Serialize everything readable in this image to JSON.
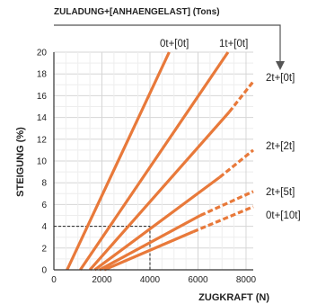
{
  "chart_data": {
    "type": "line",
    "header": "ZULADUNG+[ANHAENGELAST]  (Tons)",
    "xlabel": "ZUGKRAFT (N)",
    "ylabel": "STEIGUNG (%)",
    "xlim": [
      0,
      8300
    ],
    "ylim": [
      0,
      20
    ],
    "x_ticks": [
      0,
      2000,
      4000,
      6000,
      8000
    ],
    "y_ticks": [
      0,
      2,
      4,
      6,
      8,
      10,
      12,
      14,
      16,
      18,
      20
    ],
    "grid": true,
    "line_color": "#e8793a",
    "axis_color": "#333333",
    "guide_color": "#222222",
    "guide_point": {
      "x": 4000,
      "y": 4
    },
    "series": [
      {
        "name": "0t+[0t]",
        "x": [
          550,
          4800
        ],
        "y": [
          0,
          20
        ]
      },
      {
        "name": "1t+[0t]",
        "x": [
          1100,
          7250
        ],
        "y": [
          0,
          20
        ]
      },
      {
        "name": "2t+[0t]",
        "x": [
          1500,
          7300
        ],
        "y": [
          0,
          14.5
        ],
        "dashed_from_x": 7300,
        "dashed_to": {
          "x": 8300,
          "y": 17.3
        }
      },
      {
        "name": "2t+[2t]",
        "x": [
          1700,
          6900
        ],
        "y": [
          0,
          8.5
        ],
        "dashed_from_x": 6900,
        "dashed_to": {
          "x": 8300,
          "y": 11.0
        }
      },
      {
        "name": "2t+[5t]",
        "x": [
          1900,
          6100
        ],
        "y": [
          0,
          5.0
        ],
        "dashed_from_x": 6100,
        "dashed_to": {
          "x": 8300,
          "y": 7.2
        }
      },
      {
        "name": "0t+[10t]",
        "x": [
          2100,
          5800
        ],
        "y": [
          0,
          3.5
        ],
        "dashed_from_x": 5800,
        "dashed_to": {
          "x": 8300,
          "y": 5.8
        }
      }
    ]
  }
}
